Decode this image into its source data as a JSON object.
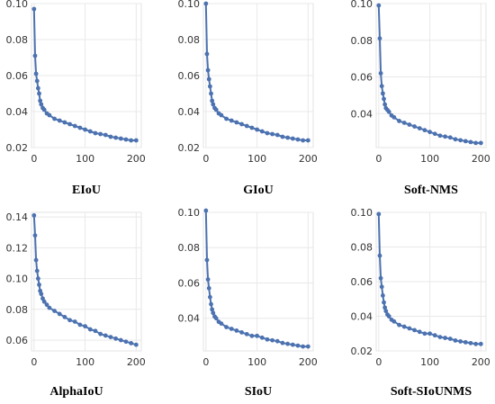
{
  "chart_data": [
    {
      "type": "line",
      "title": "EIoU",
      "xlim": [
        -5,
        210
      ],
      "ylim": [
        0.02,
        0.1
      ],
      "xticks": [
        0,
        100,
        200
      ],
      "yticks": [
        0.02,
        0.04,
        0.06,
        0.08,
        0.1
      ],
      "ytick_labels": [
        "0.02",
        "0.04",
        "0.06",
        "0.08",
        "0.10"
      ],
      "grid": true,
      "color": "#4c72b0",
      "x": [
        0,
        2,
        4,
        6,
        8,
        10,
        12,
        14,
        17,
        20,
        25,
        30,
        40,
        50,
        60,
        70,
        80,
        90,
        100,
        110,
        120,
        130,
        140,
        150,
        160,
        170,
        180,
        190,
        200
      ],
      "y": [
        0.097,
        0.071,
        0.061,
        0.057,
        0.053,
        0.05,
        0.046,
        0.044,
        0.042,
        0.041,
        0.039,
        0.038,
        0.036,
        0.035,
        0.034,
        0.033,
        0.032,
        0.031,
        0.03,
        0.029,
        0.028,
        0.0275,
        0.027,
        0.026,
        0.0255,
        0.025,
        0.0245,
        0.024,
        0.024
      ]
    },
    {
      "type": "line",
      "title": "GIoU",
      "xlim": [
        -5,
        210
      ],
      "ylim": [
        0.02,
        0.1
      ],
      "xticks": [
        0,
        100,
        200
      ],
      "yticks": [
        0.02,
        0.04,
        0.06,
        0.08,
        0.1
      ],
      "ytick_labels": [
        "0.02",
        "0.04",
        "0.06",
        "0.08",
        "0.10"
      ],
      "grid": true,
      "color": "#4c72b0",
      "x": [
        0,
        2,
        4,
        6,
        8,
        10,
        12,
        14,
        17,
        20,
        25,
        30,
        40,
        50,
        60,
        70,
        80,
        90,
        100,
        110,
        120,
        130,
        140,
        150,
        160,
        170,
        180,
        190,
        200
      ],
      "y": [
        0.1,
        0.072,
        0.063,
        0.058,
        0.054,
        0.05,
        0.046,
        0.044,
        0.042,
        0.041,
        0.039,
        0.038,
        0.036,
        0.035,
        0.034,
        0.033,
        0.032,
        0.031,
        0.03,
        0.029,
        0.028,
        0.0275,
        0.027,
        0.026,
        0.0255,
        0.025,
        0.0245,
        0.024,
        0.024
      ]
    },
    {
      "type": "line",
      "title": "Soft-NMS",
      "xlim": [
        -5,
        210
      ],
      "ylim": [
        0.0215,
        0.1
      ],
      "xticks": [
        0,
        100,
        200
      ],
      "yticks": [
        0.04,
        0.06,
        0.08,
        0.1
      ],
      "ytick_labels": [
        "0.04",
        "0.06",
        "0.08",
        "0.10"
      ],
      "grid": true,
      "color": "#4c72b0",
      "x": [
        0,
        2,
        4,
        6,
        8,
        10,
        12,
        14,
        17,
        20,
        25,
        30,
        40,
        50,
        60,
        70,
        80,
        90,
        100,
        110,
        120,
        130,
        140,
        150,
        160,
        170,
        180,
        190,
        200
      ],
      "y": [
        0.099,
        0.081,
        0.062,
        0.055,
        0.051,
        0.048,
        0.045,
        0.043,
        0.042,
        0.041,
        0.039,
        0.038,
        0.036,
        0.035,
        0.034,
        0.033,
        0.032,
        0.031,
        0.03,
        0.029,
        0.028,
        0.0275,
        0.027,
        0.026,
        0.0255,
        0.025,
        0.0245,
        0.024,
        0.024
      ]
    },
    {
      "type": "line",
      "title": "AlphaIoU",
      "xlim": [
        -5,
        210
      ],
      "ylim": [
        0.053,
        0.143
      ],
      "xticks": [
        0,
        100,
        200
      ],
      "yticks": [
        0.06,
        0.08,
        0.1,
        0.12,
        0.14
      ],
      "ytick_labels": [
        "0.06",
        "0.08",
        "0.10",
        "0.12",
        "0.14"
      ],
      "grid": true,
      "color": "#4c72b0",
      "x": [
        0,
        2,
        4,
        6,
        8,
        10,
        12,
        14,
        17,
        20,
        25,
        30,
        40,
        50,
        60,
        70,
        80,
        90,
        100,
        110,
        120,
        130,
        140,
        150,
        160,
        170,
        180,
        190,
        200
      ],
      "y": [
        0.141,
        0.128,
        0.112,
        0.105,
        0.1,
        0.096,
        0.092,
        0.09,
        0.087,
        0.085,
        0.083,
        0.081,
        0.079,
        0.077,
        0.075,
        0.073,
        0.072,
        0.07,
        0.069,
        0.067,
        0.066,
        0.064,
        0.063,
        0.062,
        0.061,
        0.06,
        0.059,
        0.058,
        0.057
      ]
    },
    {
      "type": "line",
      "title": "SIoU",
      "xlim": [
        -5,
        210
      ],
      "ylim": [
        0.0215,
        0.1
      ],
      "xticks": [
        0,
        100,
        200
      ],
      "yticks": [
        0.04,
        0.06,
        0.08,
        0.1
      ],
      "ytick_labels": [
        "0.04",
        "0.06",
        "0.08",
        "0.10"
      ],
      "grid": true,
      "color": "#4c72b0",
      "x": [
        0,
        2,
        4,
        6,
        8,
        10,
        12,
        14,
        17,
        20,
        25,
        30,
        40,
        50,
        60,
        70,
        80,
        90,
        100,
        110,
        120,
        130,
        140,
        150,
        160,
        170,
        180,
        190,
        200
      ],
      "y": [
        0.101,
        0.073,
        0.062,
        0.057,
        0.052,
        0.048,
        0.045,
        0.043,
        0.041,
        0.04,
        0.038,
        0.037,
        0.035,
        0.034,
        0.033,
        0.032,
        0.031,
        0.03,
        0.03,
        0.029,
        0.028,
        0.0275,
        0.027,
        0.026,
        0.0255,
        0.025,
        0.0245,
        0.024,
        0.024
      ]
    },
    {
      "type": "line",
      "title": "Soft-SIoUNMS",
      "xlim": [
        -5,
        210
      ],
      "ylim": [
        0.02,
        0.1
      ],
      "xticks": [
        0,
        100,
        200
      ],
      "yticks": [
        0.02,
        0.04,
        0.06,
        0.08,
        0.1
      ],
      "ytick_labels": [
        "0.02",
        "0.04",
        "0.06",
        "0.08",
        "0.10"
      ],
      "grid": true,
      "color": "#4c72b0",
      "x": [
        0,
        2,
        4,
        6,
        8,
        10,
        12,
        14,
        17,
        20,
        25,
        30,
        40,
        50,
        60,
        70,
        80,
        90,
        100,
        110,
        120,
        130,
        140,
        150,
        160,
        170,
        180,
        190,
        200
      ],
      "y": [
        0.099,
        0.075,
        0.062,
        0.057,
        0.052,
        0.048,
        0.045,
        0.043,
        0.041,
        0.04,
        0.038,
        0.037,
        0.035,
        0.034,
        0.033,
        0.032,
        0.031,
        0.03,
        0.03,
        0.029,
        0.028,
        0.0275,
        0.027,
        0.026,
        0.0255,
        0.025,
        0.0245,
        0.024,
        0.024
      ]
    }
  ]
}
